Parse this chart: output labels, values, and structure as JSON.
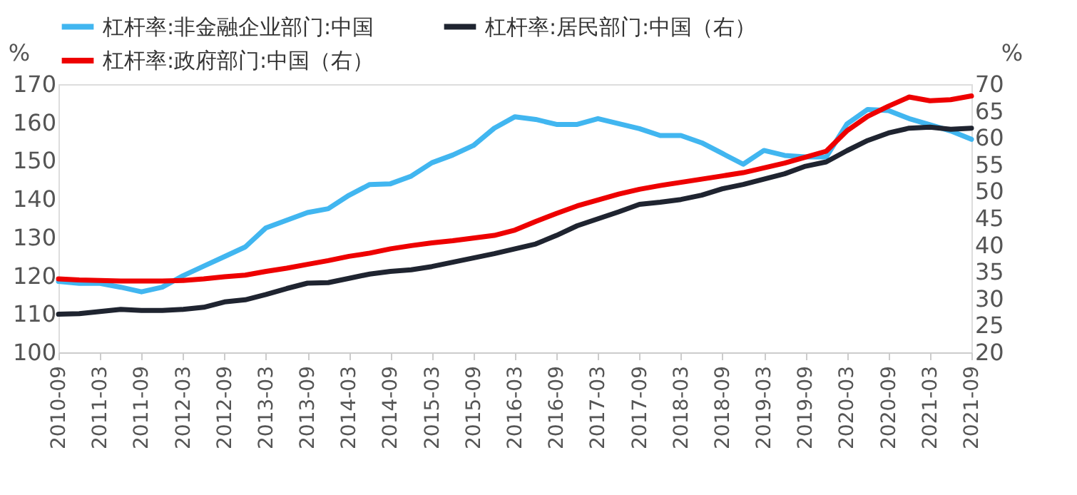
{
  "chart_data": {
    "type": "line",
    "categories": [
      "2010-09",
      null,
      "2011-03",
      null,
      "2011-09",
      null,
      "2012-03",
      null,
      "2012-09",
      null,
      "2013-03",
      null,
      "2013-09",
      null,
      "2014-03",
      null,
      "2014-09",
      null,
      "2015-03",
      null,
      "2015-09",
      null,
      "2016-03",
      null,
      "2016-09",
      null,
      "2017-03",
      null,
      "2017-09",
      null,
      "2018-03",
      null,
      "2018-09",
      null,
      "2019-03",
      null,
      "2019-09",
      null,
      "2020-03",
      null,
      "2020-09",
      null,
      "2021-03",
      null,
      "2021-09"
    ],
    "ylabel": "%",
    "y2label": "%",
    "ylim": [
      100,
      170
    ],
    "yticks": [
      100,
      110,
      120,
      130,
      140,
      150,
      160,
      170
    ],
    "y2lim": [
      20,
      70
    ],
    "y2ticks": [
      20,
      25,
      30,
      35,
      40,
      45,
      50,
      55,
      60,
      65,
      70
    ],
    "grid": false,
    "legend": "top",
    "marker": "none",
    "line_style": "solid",
    "series": [
      {
        "name": "杠杆率:非金融企业部门:中国",
        "color": "#41b6f0",
        "values": [
          118.5,
          118,
          118,
          117,
          115.8,
          117,
          120,
          122.5,
          125,
          127.5,
          132.5,
          134.5,
          136.5,
          137.5,
          141,
          143.8,
          144,
          146,
          149.5,
          151.5,
          154,
          158.5,
          161.5,
          160.8,
          159.5,
          159.5,
          161,
          159.7,
          158.4,
          156.6,
          156.6,
          154.7,
          151.9,
          149.1,
          152.7,
          151.4,
          151,
          151,
          159.6,
          163.4,
          163.1,
          161,
          159.4,
          157.8,
          155.6
        ]
      },
      {
        "name": "杠杆率:居民部门:中国（右）",
        "color": "#1f2430",
        "axis": "y2",
        "values": [
          27.1,
          27.2,
          27.6,
          28.0,
          27.8,
          27.8,
          28.0,
          28.4,
          29.4,
          29.8,
          30.8,
          31.9,
          32.9,
          33.0,
          33.8,
          34.6,
          35.1,
          35.4,
          36.0,
          36.8,
          37.6,
          38.4,
          39.3,
          40.2,
          41.8,
          43.6,
          44.9,
          46.2,
          47.6,
          48,
          48.5,
          49.3,
          50.5,
          51.3,
          52.3,
          53.3,
          54.7,
          55.5,
          57.6,
          59.5,
          60.9,
          61.8,
          62,
          61.6,
          61.8
        ]
      },
      {
        "name": "杠杆率:政府部门:中国（右）",
        "color": "#ee0000",
        "axis": "y2",
        "values": [
          33.7,
          33.5,
          33.4,
          33.3,
          33.3,
          33.3,
          33.4,
          33.7,
          34.1,
          34.4,
          35.1,
          35.7,
          36.4,
          37.1,
          37.9,
          38.5,
          39.3,
          39.9,
          40.4,
          40.8,
          41.3,
          41.8,
          42.8,
          44.4,
          45.9,
          47.3,
          48.4,
          49.5,
          50.4,
          51.1,
          51.7,
          52.3,
          52.9,
          53.5,
          54.4,
          55.3,
          56.4,
          57.5,
          61.3,
          64,
          65.9,
          67.6,
          66.9,
          67.1,
          67.8
        ]
      }
    ]
  }
}
